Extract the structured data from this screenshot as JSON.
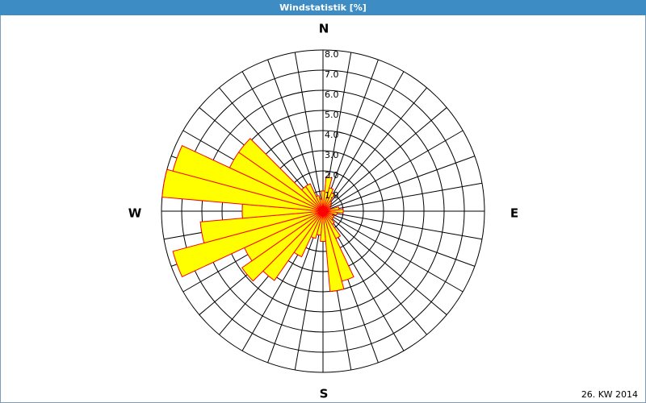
{
  "chart_data": {
    "type": "polar-bar",
    "title": "Windstatistik [%]",
    "direction_labels": [
      "N",
      "E",
      "S",
      "W"
    ],
    "annotation": "26. KW 2014",
    "categories": [
      null,
      null,
      null,
      null,
      null,
      null,
      null,
      null,
      null,
      null,
      null,
      null,
      null,
      null,
      null,
      null,
      null,
      null,
      null,
      null,
      null,
      null,
      null,
      null,
      null,
      null,
      null,
      null,
      null,
      null,
      null,
      null,
      null,
      null,
      null,
      null
    ],
    "values": [
      1.0,
      1.7,
      1.2,
      1.0,
      0.6,
      0.5,
      0.4,
      0.4,
      0.8,
      1.0,
      0.7,
      0.5,
      0.6,
      0.6,
      0.8,
      1.5,
      3.6,
      4.0,
      1.5,
      1.2,
      1.4,
      2.5,
      4.2,
      4.9,
      4.3,
      7.7,
      6.1,
      4.0,
      8.0,
      7.7,
      5.1,
      5.1,
      1.5,
      1.5,
      0.8,
      0.6
    ],
    "color": "#ffff00",
    "edge_color": "#ff0000",
    "ylim": [
      0,
      8
    ],
    "yticks": [
      {
        "value": 1,
        "label": "1.0"
      },
      {
        "value": 2,
        "label": "2.0"
      },
      {
        "value": 3,
        "label": "3.0"
      },
      {
        "value": 4,
        "label": "4.0"
      },
      {
        "value": 5,
        "label": "5.0"
      },
      {
        "value": 6,
        "label": "6.0"
      },
      {
        "value": 7,
        "label": "7.0"
      },
      {
        "value": 8,
        "label": "8.0"
      }
    ],
    "grid": true
  }
}
